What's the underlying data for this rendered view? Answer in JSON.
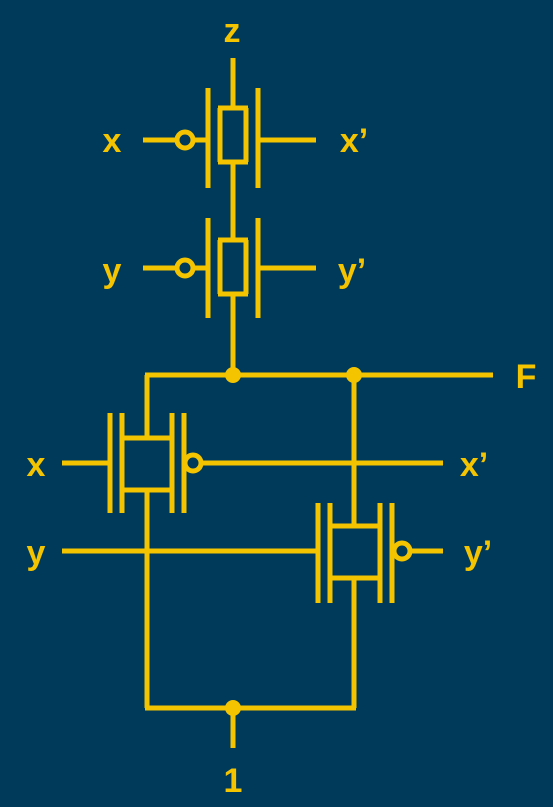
{
  "diagram": {
    "colors": {
      "background": "#003a5a",
      "wire": "#f5c400"
    },
    "labels": {
      "top_output": "z",
      "g1_left": "x",
      "g1_right": "x’",
      "g2_left": "y",
      "g2_right": "y’",
      "output_f": "F",
      "g3_left": "x",
      "g3_right": "x’",
      "g4_left": "y",
      "g4_right": "y’",
      "bottom_input": "1"
    }
  }
}
